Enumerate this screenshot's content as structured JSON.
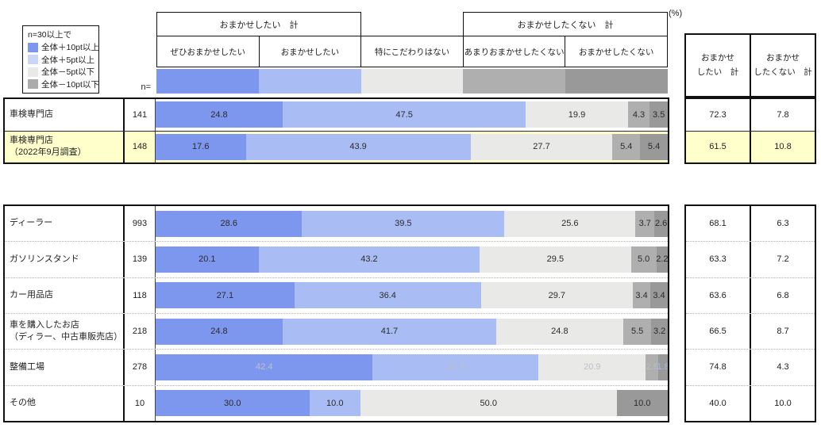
{
  "unit_label": "(%)",
  "n_axis_label": "n=",
  "legend": {
    "title": "n=30以上で",
    "items": [
      {
        "label": "全体＋10pt以上",
        "color": "#7D97EE"
      },
      {
        "label": "全体＋5pt以上",
        "color": "#C9D6F8"
      },
      {
        "label": "全体－5pt以下",
        "color": "#E9E9E7"
      },
      {
        "label": "全体－10pt以下",
        "color": "#ABABAB"
      }
    ]
  },
  "header": {
    "group_left": "おまかせしたい　計",
    "group_right": "おまかせしたくない　計",
    "sub_columns": [
      "ぜひおまかせしたい",
      "おまかせしたい",
      "特にこだわりはない",
      "あまりおまかせしたくない",
      "おまかせしたくない"
    ]
  },
  "summary_header": {
    "left_line1": "おまかせ",
    "left_line2": "したい　計",
    "right_line1": "おまかせ",
    "right_line2": "したくない　計"
  },
  "colors": {
    "segments": [
      "#7D97EE",
      "#A9BDF4",
      "#E9E9E7",
      "#AFAFAF",
      "#999999"
    ],
    "highlight_row_bg": "#FFFFCC"
  },
  "chart_data": {
    "type": "bar",
    "stacked": true,
    "orientation": "horizontal",
    "unit": "%",
    "xlim": [
      0,
      100
    ],
    "segment_labels": [
      "ぜひおまかせしたい",
      "おまかせしたい",
      "特にこだわりはない",
      "あまりおまかせしたくない",
      "おまかせしたくない"
    ],
    "summary_columns": [
      "おまかせしたい 計",
      "おまかせしたくない 計"
    ],
    "tables": [
      {
        "rows": [
          {
            "label_lines": [
              "車検専門店"
            ],
            "n": "141",
            "values": [
              24.8,
              47.5,
              19.9,
              4.3,
              3.5
            ],
            "want_total": 72.3,
            "not_want_total": 7.8,
            "highlight": false,
            "faint": false
          },
          {
            "label_lines": [
              "車検専門店",
              "（2022年9月調査）"
            ],
            "n": "148",
            "values": [
              17.6,
              43.9,
              27.7,
              5.4,
              5.4
            ],
            "want_total": 61.5,
            "not_want_total": 10.8,
            "highlight": true,
            "faint": false
          }
        ]
      },
      {
        "rows": [
          {
            "label_lines": [
              "ディーラー"
            ],
            "n": "993",
            "values": [
              28.6,
              39.5,
              25.6,
              3.7,
              2.6
            ],
            "want_total": 68.1,
            "not_want_total": 6.3,
            "highlight": false,
            "faint": false
          },
          {
            "label_lines": [
              "ガソリンスタンド"
            ],
            "n": "139",
            "values": [
              20.1,
              43.2,
              29.5,
              5.0,
              2.2
            ],
            "want_total": 63.3,
            "not_want_total": 7.2,
            "highlight": false,
            "faint": false
          },
          {
            "label_lines": [
              "カー用品店"
            ],
            "n": "118",
            "values": [
              27.1,
              36.4,
              29.7,
              3.4,
              3.4
            ],
            "want_total": 63.6,
            "not_want_total": 6.8,
            "highlight": false,
            "faint": false
          },
          {
            "label_lines": [
              "車を購入したお店",
              "（ディラー、中古車販売店）"
            ],
            "n": "218",
            "values": [
              24.8,
              41.7,
              24.8,
              5.5,
              3.2
            ],
            "want_total": 66.5,
            "not_want_total": 8.7,
            "highlight": false,
            "faint": false
          },
          {
            "label_lines": [
              "整備工場"
            ],
            "n": "278",
            "values": [
              42.4,
              32.4,
              20.9,
              2.5,
              1.8
            ],
            "want_total": 74.8,
            "not_want_total": 4.3,
            "highlight": false,
            "faint": true
          },
          {
            "label_lines": [
              "その他"
            ],
            "n": "10",
            "values": [
              30.0,
              10.0,
              50.0,
              0.0,
              10.0
            ],
            "want_total": 40.0,
            "not_want_total": 10.0,
            "highlight": false,
            "faint": false
          }
        ]
      }
    ]
  }
}
